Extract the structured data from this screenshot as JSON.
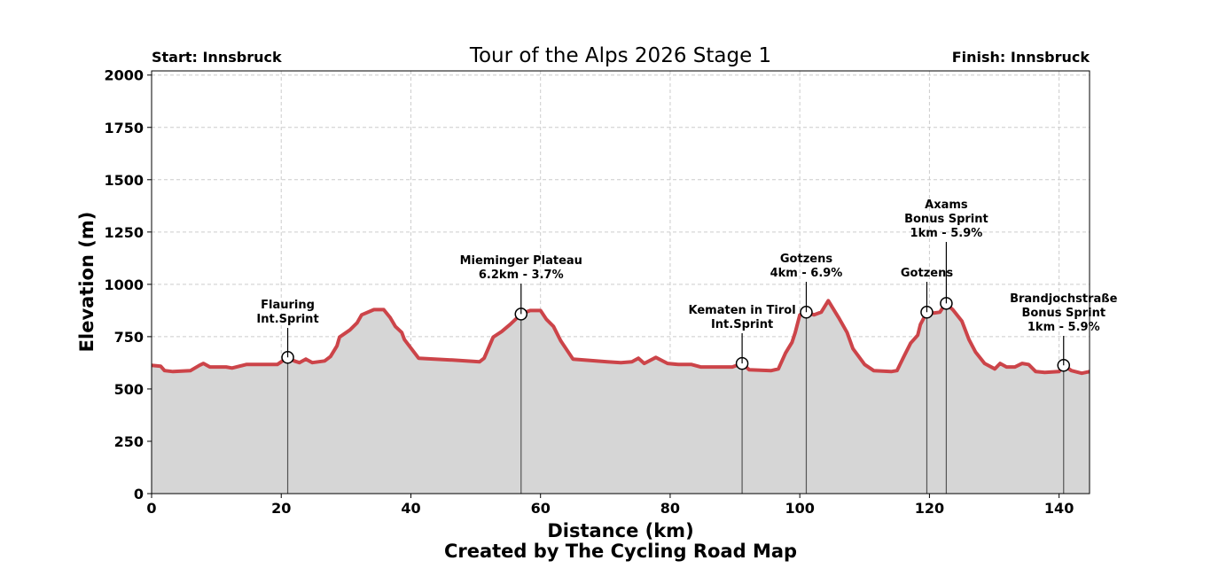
{
  "chart_data": {
    "type": "area",
    "title": "Tour of the Alps 2026 Stage 1",
    "start_label": "Start: Innsbruck",
    "finish_label": "Finish: Innsbruck",
    "xlabel": "Distance (km)",
    "ylabel": "Elevation (m)",
    "caption": "Created by The Cycling Road Map",
    "xlim": [
      0,
      144.7
    ],
    "ylim": [
      0,
      2020
    ],
    "xticks": [
      0,
      20,
      40,
      60,
      80,
      100,
      120,
      140
    ],
    "yticks": [
      0,
      250,
      500,
      750,
      1000,
      1250,
      1500,
      1750,
      2000
    ],
    "grid": true,
    "colors": {
      "line": "#cc4449",
      "fill": "#d6d6d6",
      "grid": "#cccccc",
      "marker_line": "#555555"
    },
    "profile": {
      "x": [
        0,
        1.4,
        2,
        3.3,
        6,
        7.4,
        8,
        9,
        11.5,
        12.4,
        14.6,
        17.6,
        19.4,
        21,
        22,
        22.8,
        23.8,
        24.8,
        26.7,
        27.6,
        28.6,
        29,
        30.6,
        31.7,
        32.4,
        34.3,
        35.8,
        36.8,
        37.6,
        38.6,
        39,
        41.2,
        46.4,
        50.6,
        51.3,
        52.7,
        54,
        55.3,
        57,
        58.4,
        60,
        60.9,
        62,
        63.1,
        65,
        70.3,
        72.4,
        74.1,
        75.1,
        76,
        77.8,
        79.6,
        81.3,
        83.3,
        84.7,
        86.7,
        89.6,
        91.1,
        92.2,
        95.6,
        96.7,
        97.8,
        98.8,
        99.3,
        100,
        101,
        102.2,
        103.3,
        104.4,
        106,
        107.3,
        108.2,
        110,
        111.4,
        114.1,
        115,
        116.2,
        117.1,
        118.2,
        118.6,
        119.6,
        120.5,
        121.6,
        122.5,
        123.6,
        125,
        126.1,
        127.1,
        128.5,
        130.1,
        130.9,
        131.9,
        133.2,
        134.3,
        135.3,
        136.4,
        137.8,
        140,
        140.7,
        141.9,
        143.5,
        144.7
      ],
      "elevation": [
        613,
        609,
        588,
        583,
        588,
        613,
        622,
        605,
        605,
        600,
        617,
        617,
        617,
        651,
        634,
        626,
        643,
        626,
        634,
        655,
        706,
        748,
        782,
        816,
        854,
        879,
        879,
        841,
        799,
        770,
        736,
        647,
        638,
        630,
        647,
        748,
        774,
        808,
        858,
        875,
        875,
        833,
        799,
        731,
        643,
        630,
        626,
        630,
        647,
        622,
        651,
        622,
        617,
        617,
        605,
        605,
        605,
        622,
        592,
        588,
        596,
        672,
        723,
        770,
        854,
        867,
        854,
        867,
        922,
        841,
        770,
        693,
        617,
        588,
        583,
        588,
        664,
        719,
        757,
        808,
        867,
        862,
        867,
        909,
        879,
        824,
        736,
        677,
        622,
        596,
        622,
        605,
        605,
        622,
        617,
        583,
        579,
        583,
        613,
        588,
        575,
        583
      ]
    },
    "annotations": [
      {
        "km": 21,
        "elevation": 651,
        "lines": [
          "Flauring",
          "Int.Sprint"
        ]
      },
      {
        "km": 57,
        "elevation": 858,
        "lines": [
          "Mieminger Plateau",
          "6.2km - 3.7%"
        ]
      },
      {
        "km": 91.1,
        "elevation": 622,
        "lines": [
          "Kematen in Tirol",
          "Int.Sprint"
        ]
      },
      {
        "km": 101,
        "elevation": 867,
        "lines": [
          "Gotzens",
          "4km - 6.9%"
        ]
      },
      {
        "km": 119.6,
        "elevation": 867,
        "lines": [
          "Gotzens"
        ]
      },
      {
        "km": 122.6,
        "elevation": 909,
        "lines": [
          "Axams",
          "Bonus Sprint",
          "1km - 5.9%"
        ]
      },
      {
        "km": 140.7,
        "elevation": 613,
        "lines": [
          "Brandjochstraße",
          "Bonus Sprint",
          "1km - 5.9%"
        ]
      }
    ]
  }
}
